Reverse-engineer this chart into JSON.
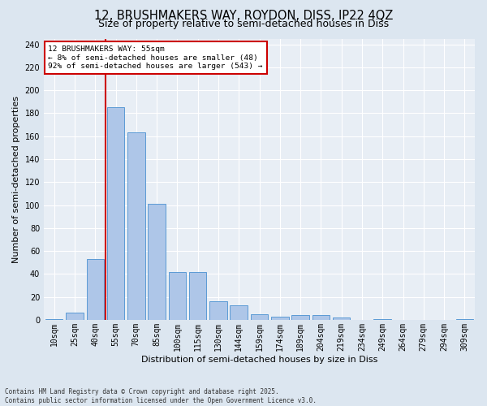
{
  "title": "12, BRUSHMAKERS WAY, ROYDON, DISS, IP22 4QZ",
  "subtitle": "Size of property relative to semi-detached houses in Diss",
  "xlabel": "Distribution of semi-detached houses by size in Diss",
  "ylabel": "Number of semi-detached properties",
  "footer": "Contains HM Land Registry data © Crown copyright and database right 2025.\nContains public sector information licensed under the Open Government Licence v3.0.",
  "categories": [
    "10sqm",
    "25sqm",
    "40sqm",
    "55sqm",
    "70sqm",
    "85sqm",
    "100sqm",
    "115sqm",
    "130sqm",
    "144sqm",
    "159sqm",
    "174sqm",
    "189sqm",
    "204sqm",
    "219sqm",
    "234sqm",
    "249sqm",
    "264sqm",
    "279sqm",
    "294sqm",
    "309sqm"
  ],
  "values": [
    1,
    6,
    53,
    185,
    163,
    101,
    42,
    42,
    16,
    13,
    5,
    3,
    4,
    4,
    2,
    0,
    1,
    0,
    0,
    0,
    1
  ],
  "bar_color": "#aec6e8",
  "bar_edge_color": "#5b9bd5",
  "highlight_index": 3,
  "highlight_line_color": "#cc0000",
  "annotation_title": "12 BRUSHMAKERS WAY: 55sqm",
  "annotation_line1": "← 8% of semi-detached houses are smaller (48)",
  "annotation_line2": "92% of semi-detached houses are larger (543) →",
  "annotation_box_color": "#cc0000",
  "ylim": [
    0,
    245
  ],
  "yticks": [
    0,
    20,
    40,
    60,
    80,
    100,
    120,
    140,
    160,
    180,
    200,
    220,
    240
  ],
  "bg_color": "#dce6f0",
  "plot_bg_color": "#e8eef5",
  "title_fontsize": 10.5,
  "subtitle_fontsize": 9,
  "axis_label_fontsize": 8,
  "tick_fontsize": 7,
  "footer_fontsize": 5.5
}
